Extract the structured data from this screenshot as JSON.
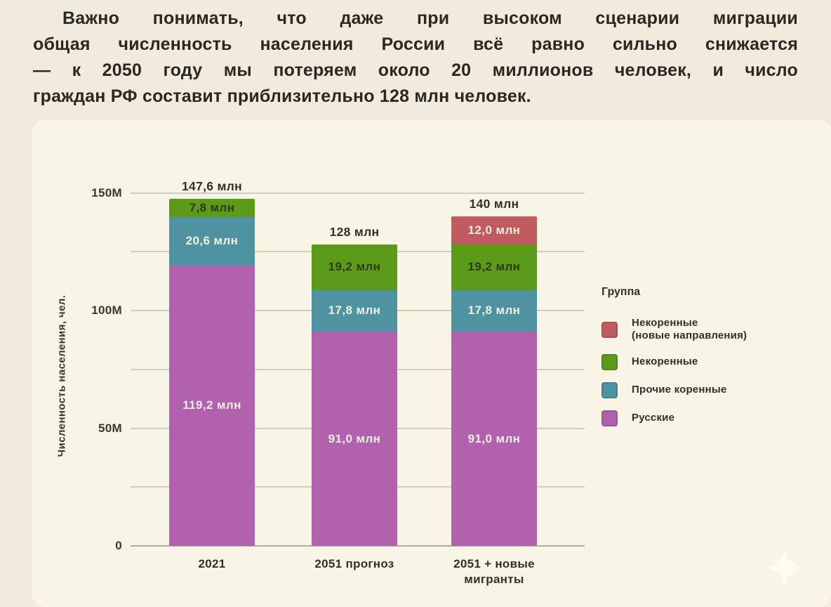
{
  "page": {
    "background": "#f1ebde",
    "panel_background": "#f8f4e6"
  },
  "intro": {
    "text": "Важно понимать, что даже при высоком сценарии миграции общая численность населения России всё равно сильно снижается — к 2050 году мы потеряем около 20 миллионов человек, и число граждан РФ составит приблизительно 128 млн человек.",
    "lines": [
      "Важно понимать, что даже при высоком сценарии миграции",
      "общая численность населения России всё равно сильно снижается",
      "— к 2050 году мы потеряем около 20 миллионов человек, и число",
      "граждан РФ составит приблизительно 128 млн человек."
    ]
  },
  "chart_data": {
    "type": "bar",
    "stacked": true,
    "title": "",
    "ylabel": "Численность населения, чел.",
    "ylim": [
      0,
      150
    ],
    "grid": true,
    "categories": [
      "2021",
      "2051 прогноз",
      "2051 + новые мигранты"
    ],
    "category_lines": [
      [
        "2021"
      ],
      [
        "2051 прогноз"
      ],
      [
        "2051 + новые",
        "мигранты"
      ]
    ],
    "totals_m": [
      147.6,
      128,
      140
    ],
    "total_labels": [
      "147,6 млн",
      "128 млн",
      "140 млн"
    ],
    "series": [
      {
        "name": "Русские",
        "color": "#b261ae",
        "values": [
          119.2,
          91.0,
          91.0
        ],
        "labels": [
          "119,2 млн",
          "91,0 млн",
          "91,0 млн"
        ],
        "label_color": "#f4f0e0"
      },
      {
        "name": "Прочие коренные",
        "color": "#4f93a3",
        "values": [
          20.6,
          17.8,
          17.8
        ],
        "labels": [
          "20,6 млн",
          "17,8 млн",
          "17,8 млн"
        ],
        "label_color": "#f4f0e0"
      },
      {
        "name": "Некоренные",
        "color": "#5c9a19",
        "values": [
          7.8,
          19.2,
          19.2
        ],
        "labels": [
          "7,8 млн",
          "19,2 млн",
          "19,2 млн"
        ],
        "label_color": "#2e3a12"
      },
      {
        "name": "Некоренные (новые направления)",
        "color": "#c05c60",
        "values": [
          0,
          0,
          12.0
        ],
        "labels": [
          "",
          "",
          "12,0 млн"
        ],
        "label_color": "#f6ece0"
      }
    ],
    "yticks": [
      {
        "value": 0,
        "label": "0"
      },
      {
        "value": 25,
        "label": ""
      },
      {
        "value": 50,
        "label": "50M"
      },
      {
        "value": 75,
        "label": ""
      },
      {
        "value": 100,
        "label": "100M"
      },
      {
        "value": 125,
        "label": ""
      },
      {
        "value": 150,
        "label": "150M"
      }
    ],
    "legend": {
      "title": "Группа",
      "position": "right",
      "items": [
        {
          "label": "Некоренные (новые направления)",
          "label_lines": [
            "Некоренные",
            "(новые направления)"
          ],
          "color": "#c05c60"
        },
        {
          "label": "Некоренные",
          "label_lines": [
            "Некоренные"
          ],
          "color": "#5c9a19"
        },
        {
          "label": "Прочие коренные",
          "label_lines": [
            "Прочие коренные"
          ],
          "color": "#4f93a3"
        },
        {
          "label": "Русские",
          "label_lines": [
            "Русские"
          ],
          "color": "#b261ae"
        }
      ]
    }
  },
  "decor": {
    "sparkle_icon": "four-point-star",
    "sparkle_color": "#fffdf2"
  }
}
